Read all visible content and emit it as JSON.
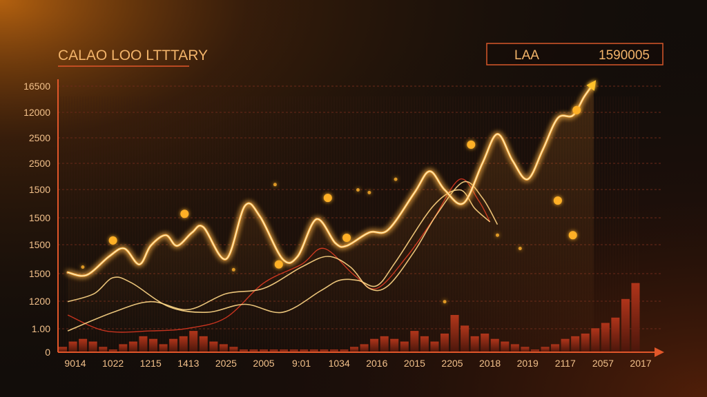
{
  "title": "CALAO LOO LTTTARY",
  "legend": {
    "label": "LAA",
    "value": "1590005"
  },
  "colors": {
    "background": "#120d0a",
    "glow_line": "#ffb347",
    "secondary_line": "#ffd98a",
    "red_line": "#c8321f",
    "bars": "#7a2614",
    "axis": "#e2572a",
    "grid": "#6e2a1a",
    "dots": "#ffb028"
  },
  "chart_data": {
    "type": "line",
    "title": "CALAO LOO LTTTARY",
    "y_tick_labels": [
      "16500",
      "12000",
      "2500",
      "2500",
      "1500",
      "1500",
      "1500",
      "1500",
      "1200",
      "1.00",
      "0"
    ],
    "x_tick_labels": [
      "9014",
      "1022",
      "1215",
      "1413",
      "2025",
      "2005",
      "9:01",
      "1034",
      "2016",
      "2015",
      "2205",
      "2018",
      "2019",
      "2117",
      "2057",
      "2017"
    ],
    "x_index_range": [
      0,
      15
    ],
    "ylim": [
      0,
      10
    ],
    "grid": true,
    "legend_position": "top-right",
    "series": [
      {
        "name": "LAA",
        "style": "glow",
        "points": [
          [
            -0.2,
            3.0
          ],
          [
            0.3,
            2.9
          ],
          [
            0.9,
            3.6
          ],
          [
            1.3,
            3.9
          ],
          [
            1.7,
            3.3
          ],
          [
            2.0,
            4.0
          ],
          [
            2.4,
            4.4
          ],
          [
            2.7,
            4.0
          ],
          [
            3.1,
            4.5
          ],
          [
            3.4,
            4.7
          ],
          [
            4.0,
            3.5
          ],
          [
            4.5,
            5.5
          ],
          [
            4.9,
            5.1
          ],
          [
            5.5,
            3.5
          ],
          [
            5.9,
            3.6
          ],
          [
            6.4,
            5.0
          ],
          [
            6.9,
            4.1
          ],
          [
            7.2,
            4.0
          ],
          [
            7.8,
            4.5
          ],
          [
            8.3,
            4.6
          ],
          [
            9.0,
            6.0
          ],
          [
            9.4,
            6.8
          ],
          [
            9.8,
            6.1
          ],
          [
            10.3,
            5.6
          ],
          [
            10.8,
            7.1
          ],
          [
            11.2,
            8.2
          ],
          [
            11.6,
            7.2
          ],
          [
            12.0,
            6.5
          ],
          [
            12.4,
            7.6
          ],
          [
            12.8,
            8.8
          ],
          [
            13.2,
            8.9
          ],
          [
            13.5,
            9.6
          ],
          [
            13.75,
            10.1
          ]
        ]
      },
      {
        "name": "",
        "style": "thin",
        "points": [
          [
            -0.2,
            1.9
          ],
          [
            0.5,
            2.2
          ],
          [
            1.0,
            2.8
          ],
          [
            1.5,
            2.6
          ],
          [
            2.5,
            1.7
          ],
          [
            3.5,
            1.5
          ],
          [
            4.5,
            1.8
          ],
          [
            5.5,
            1.5
          ],
          [
            6.5,
            2.3
          ],
          [
            7.0,
            2.7
          ],
          [
            7.5,
            2.7
          ],
          [
            8.0,
            2.5
          ],
          [
            8.5,
            3.4
          ],
          [
            9.5,
            5.5
          ],
          [
            10.2,
            6.1
          ],
          [
            10.6,
            5.4
          ],
          [
            11.0,
            4.9
          ]
        ]
      },
      {
        "name": "",
        "style": "thin",
        "points": [
          [
            -0.2,
            0.8
          ],
          [
            1.0,
            1.5
          ],
          [
            2.0,
            1.9
          ],
          [
            3.0,
            1.6
          ],
          [
            4.0,
            2.2
          ],
          [
            5.0,
            2.4
          ],
          [
            6.0,
            3.2
          ],
          [
            6.7,
            3.6
          ],
          [
            7.3,
            3.2
          ],
          [
            7.8,
            2.4
          ],
          [
            8.3,
            2.5
          ],
          [
            9.0,
            3.8
          ],
          [
            9.6,
            5.2
          ],
          [
            10.3,
            6.4
          ],
          [
            10.8,
            5.8
          ],
          [
            11.2,
            4.8
          ]
        ]
      },
      {
        "name": "",
        "style": "red",
        "points": [
          [
            -0.2,
            1.4
          ],
          [
            0.8,
            0.8
          ],
          [
            2.0,
            0.8
          ],
          [
            3.0,
            0.9
          ],
          [
            4.0,
            1.3
          ],
          [
            5.0,
            2.6
          ],
          [
            6.0,
            3.3
          ],
          [
            6.6,
            3.9
          ],
          [
            7.4,
            2.9
          ],
          [
            8.0,
            2.4
          ],
          [
            8.8,
            3.6
          ],
          [
            9.5,
            5.0
          ],
          [
            10.2,
            6.5
          ],
          [
            10.7,
            5.7
          ],
          [
            11.0,
            4.9
          ]
        ]
      }
    ],
    "bars": [
      0.2,
      0.4,
      0.5,
      0.4,
      0.2,
      0.1,
      0.3,
      0.4,
      0.6,
      0.5,
      0.3,
      0.5,
      0.6,
      0.8,
      0.6,
      0.4,
      0.3,
      0.2,
      0.1,
      0.1,
      0.1,
      0.1,
      0.1,
      0.1,
      0.1,
      0.1,
      0.1,
      0.1,
      0.1,
      0.2,
      0.3,
      0.5,
      0.6,
      0.5,
      0.4,
      0.8,
      0.6,
      0.4,
      0.7,
      1.4,
      1.0,
      0.6,
      0.7,
      0.5,
      0.4,
      0.3,
      0.2,
      0.1,
      0.2,
      0.3,
      0.5,
      0.6,
      0.7,
      0.9,
      1.1,
      1.3,
      2.0,
      2.6
    ],
    "scatter_points": [
      [
        1.0,
        4.2
      ],
      [
        2.9,
        5.2
      ],
      [
        5.4,
        3.3
      ],
      [
        6.7,
        5.8
      ],
      [
        7.2,
        4.3
      ],
      [
        10.5,
        7.8
      ],
      [
        13.3,
        9.1
      ],
      [
        12.8,
        5.7
      ],
      [
        13.2,
        4.4
      ],
      [
        8.5,
        6.5
      ],
      [
        7.5,
        6.1
      ],
      [
        5.3,
        6.3
      ],
      [
        0.2,
        3.2
      ],
      [
        4.2,
        3.1
      ],
      [
        7.8,
        6.0
      ],
      [
        11.2,
        4.4
      ],
      [
        11.8,
        3.9
      ],
      [
        9.8,
        1.9
      ]
    ]
  }
}
